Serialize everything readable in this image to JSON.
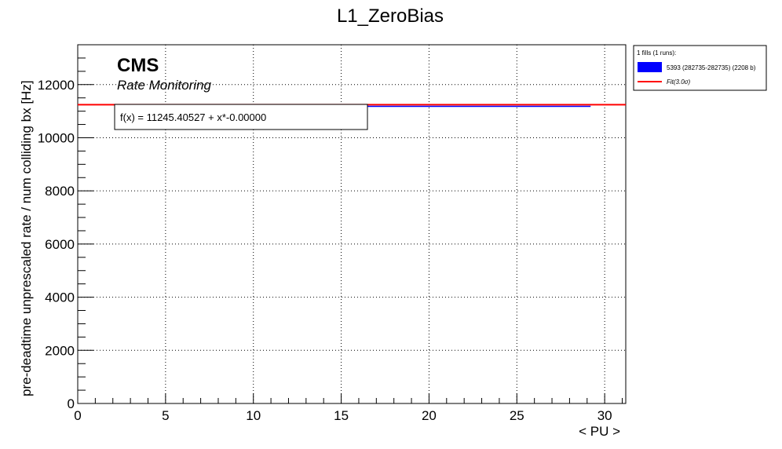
{
  "chart_data": {
    "type": "line",
    "title": "L1_ZeroBias",
    "xlabel": "< PU >",
    "ylabel": "pre-deadtime unprescaled rate / num colliding bx [Hz]",
    "xlim": [
      0,
      31.2
    ],
    "ylim": [
      0,
      13500
    ],
    "x_ticks": [
      0,
      5,
      10,
      15,
      20,
      25,
      30
    ],
    "y_ticks": [
      0,
      2000,
      4000,
      6000,
      8000,
      10000,
      12000
    ],
    "grid": true,
    "legend_placement": "outside-top-right",
    "series": [
      {
        "name": "5393 (282735-282735) (2208 b)",
        "color": "#0000ff",
        "x": [
          16.5,
          29.2
        ],
        "y": [
          11180,
          11180
        ]
      },
      {
        "name": "Fit(3.0σ)",
        "color": "#ff0000",
        "x": [
          0,
          31.2
        ],
        "y": [
          11245.40527,
          11245.40527
        ]
      }
    ],
    "legend_header": "1 fills (1 runs):",
    "annotations": {
      "experiment": "CMS",
      "subtitle": "Rate Monitoring",
      "fit_function": "f(x) = 11245.40527 + x*-0.00000"
    }
  }
}
